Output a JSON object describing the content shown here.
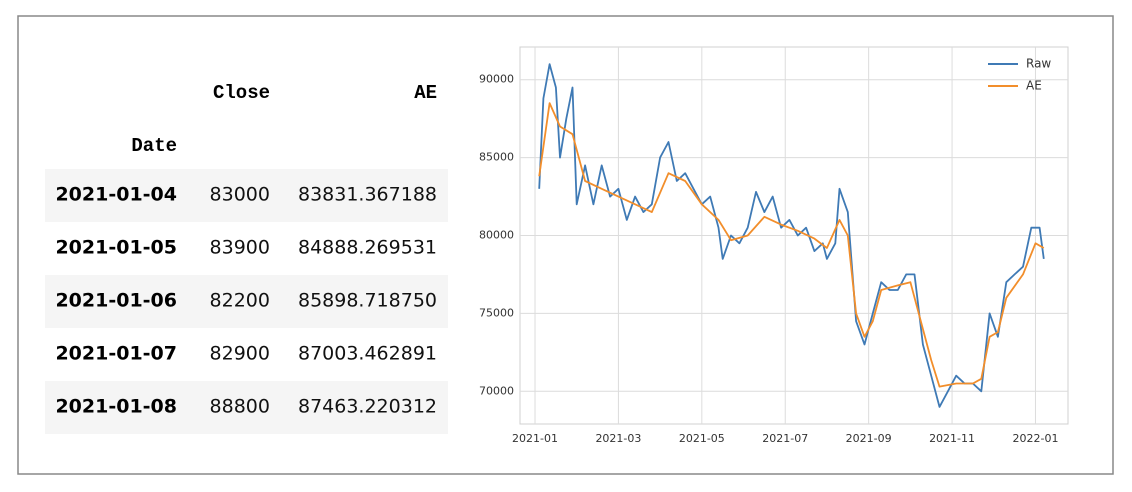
{
  "table": {
    "columns": [
      "Close",
      "AE"
    ],
    "index_name": "Date",
    "rows": [
      [
        "2021-01-04",
        "83000",
        "83831.367188"
      ],
      [
        "2021-01-05",
        "83900",
        "84888.269531"
      ],
      [
        "2021-01-06",
        "82200",
        "85898.718750"
      ],
      [
        "2021-01-07",
        "82900",
        "87003.462891"
      ],
      [
        "2021-01-08",
        "88800",
        "87463.220312"
      ]
    ]
  },
  "chart_data": {
    "type": "line",
    "xlim": [
      -0.36,
      12.78
    ],
    "ylim": [
      67900,
      92100
    ],
    "xticks": [
      {
        "value": 0,
        "label": "2021-01"
      },
      {
        "value": 2,
        "label": "2021-03"
      },
      {
        "value": 4,
        "label": "2021-05"
      },
      {
        "value": 6,
        "label": "2021-07"
      },
      {
        "value": 8,
        "label": "2021-09"
      },
      {
        "value": 10,
        "label": "2021-11"
      },
      {
        "value": 12,
        "label": "2022-01"
      }
    ],
    "yticks": [
      70000,
      75000,
      80000,
      85000,
      90000
    ],
    "grid": true,
    "legend": "upper right",
    "series": [
      {
        "name": "Raw",
        "color": "#3f7ab5",
        "x": [
          0.1,
          0.2,
          0.35,
          0.5,
          0.6,
          0.75,
          0.9,
          1.0,
          1.2,
          1.4,
          1.6,
          1.8,
          2.0,
          2.2,
          2.4,
          2.6,
          2.8,
          3.0,
          3.2,
          3.4,
          3.6,
          3.8,
          4.0,
          4.2,
          4.4,
          4.5,
          4.7,
          4.9,
          5.1,
          5.3,
          5.5,
          5.7,
          5.9,
          6.1,
          6.3,
          6.5,
          6.7,
          6.9,
          7.0,
          7.2,
          7.3,
          7.5,
          7.7,
          7.9,
          8.1,
          8.3,
          8.5,
          8.7,
          8.9,
          9.1,
          9.3,
          9.5,
          9.7,
          9.9,
          10.1,
          10.3,
          10.5,
          10.7,
          10.9,
          11.1,
          11.3,
          11.5,
          11.7,
          11.9,
          12.1,
          12.2
        ],
        "values": [
          83000,
          88800,
          91000,
          89500,
          85000,
          87500,
          89500,
          82000,
          84500,
          82000,
          84500,
          82500,
          83000,
          81000,
          82500,
          81500,
          82000,
          85000,
          86000,
          83500,
          84000,
          83000,
          82000,
          82500,
          80500,
          78500,
          80000,
          79500,
          80500,
          82800,
          81500,
          82500,
          80500,
          81000,
          80000,
          80500,
          79000,
          79500,
          78500,
          79500,
          83000,
          81500,
          74500,
          73000,
          75000,
          77000,
          76500,
          76500,
          77500,
          77500,
          73000,
          71000,
          69000,
          70000,
          71000,
          70500,
          70500,
          70000,
          75000,
          73500,
          77000,
          77500,
          78000,
          80500,
          80500,
          78500
        ]
      },
      {
        "name": "AE",
        "color": "#f28e2b",
        "x": [
          0.1,
          0.35,
          0.6,
          0.9,
          1.2,
          1.6,
          2.0,
          2.4,
          2.8,
          3.2,
          3.6,
          4.0,
          4.4,
          4.7,
          5.1,
          5.5,
          5.9,
          6.3,
          6.7,
          7.0,
          7.3,
          7.5,
          7.7,
          7.9,
          8.1,
          8.3,
          8.7,
          9.0,
          9.3,
          9.5,
          9.7,
          10.1,
          10.5,
          10.7,
          10.9,
          11.1,
          11.3,
          11.7,
          12.0,
          12.2
        ],
        "values": [
          83800,
          88500,
          87000,
          86500,
          83500,
          83000,
          82500,
          82000,
          81500,
          84000,
          83500,
          82000,
          81000,
          79700,
          80000,
          81200,
          80700,
          80300,
          79800,
          79200,
          81000,
          80000,
          75000,
          73500,
          74500,
          76500,
          76800,
          77000,
          74000,
          72000,
          70300,
          70500,
          70500,
          70800,
          73500,
          73800,
          76000,
          77500,
          79500,
          79200
        ]
      }
    ]
  }
}
